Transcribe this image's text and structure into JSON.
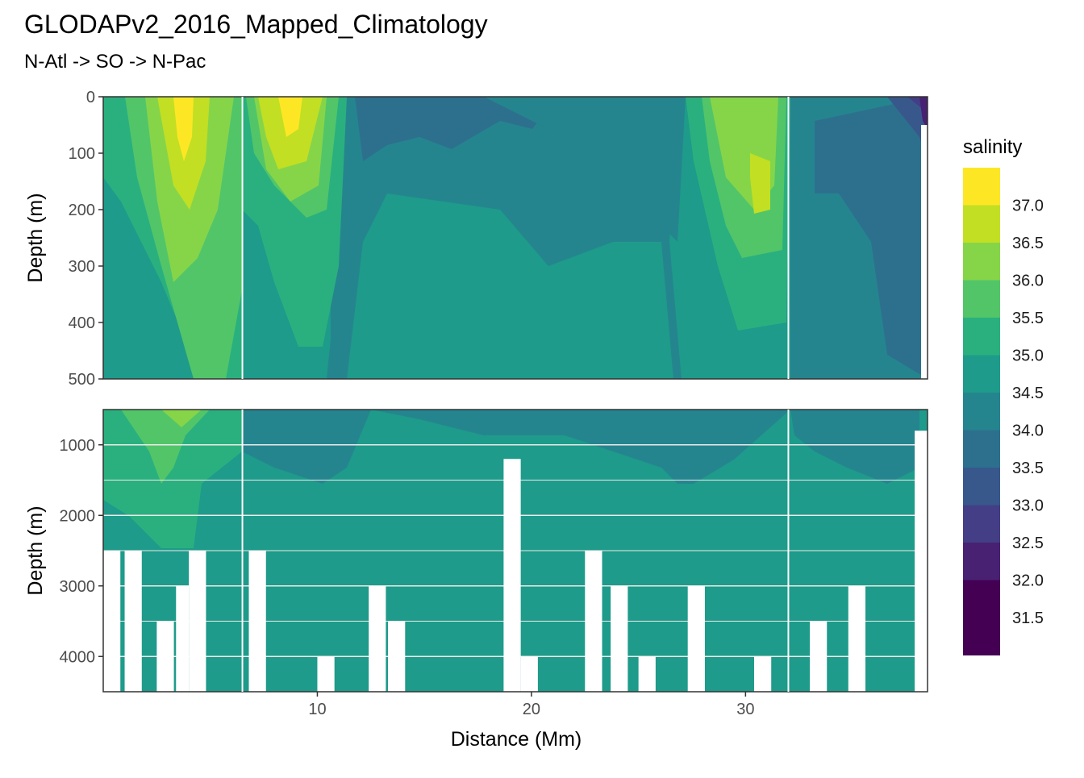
{
  "chart_data": {
    "type": "heatmap",
    "title": "GLODAPv2_2016_Mapped_Climatology",
    "subtitle": "N-Atl -> SO -> N-Pac",
    "xlabel": "Distance (Mm)",
    "ylabel": "Depth (m)",
    "xlim": [
      0,
      38.5
    ],
    "x_ticks": [
      "10",
      "20",
      "30"
    ],
    "panels": [
      {
        "name": "upper",
        "ylim": [
          0,
          500
        ],
        "y_ticks": [
          "0",
          "100",
          "200",
          "300",
          "400",
          "500"
        ]
      },
      {
        "name": "lower",
        "ylim": [
          500,
          4500
        ],
        "y_ticks": [
          "1000",
          "2000",
          "3000",
          "4000"
        ]
      }
    ],
    "section_breaks_x": [
      6.5,
      32.0
    ],
    "legend": {
      "title": "salinity",
      "placement": "right",
      "breaks": [
        "37.0",
        "36.5",
        "36.0",
        "35.5",
        "35.0",
        "34.5",
        "34.0",
        "33.5",
        "33.0",
        "32.5",
        "32.0",
        "31.5"
      ],
      "colors": [
        "#FDE725",
        "#C2DF23",
        "#86D549",
        "#52C569",
        "#2AB07F",
        "#1E9B8A",
        "#25858E",
        "#2D708E",
        "#38588C",
        "#433E85",
        "#482173",
        "#440154"
      ]
    },
    "upper_bands": [
      {
        "color": "#52C569",
        "top": [
          [
            0,
            0
          ],
          [
            38.5,
            0
          ]
        ],
        "bottom": [
          [
            0,
            500
          ],
          [
            38.5,
            500
          ]
        ]
      }
    ],
    "bottom_gaps": [
      [
        0,
        2500
      ],
      [
        1,
        2500
      ],
      [
        2.5,
        3500
      ],
      [
        3.4,
        3000
      ],
      [
        4.0,
        2500
      ],
      [
        5.0,
        4500
      ],
      [
        6.8,
        2500
      ],
      [
        8.0,
        4500
      ],
      [
        10.0,
        4000
      ],
      [
        12.4,
        3000
      ],
      [
        13.3,
        3500
      ],
      [
        14.5,
        4500
      ],
      [
        18.7,
        1200
      ],
      [
        19.5,
        4000
      ],
      [
        22.5,
        2500
      ],
      [
        23.7,
        3000
      ],
      [
        25.0,
        4000
      ],
      [
        27.3,
        3000
      ],
      [
        29.5,
        4500
      ],
      [
        30.4,
        4000
      ],
      [
        33.0,
        3500
      ],
      [
        34.8,
        3000
      ],
      [
        37.9,
        800
      ]
    ]
  }
}
